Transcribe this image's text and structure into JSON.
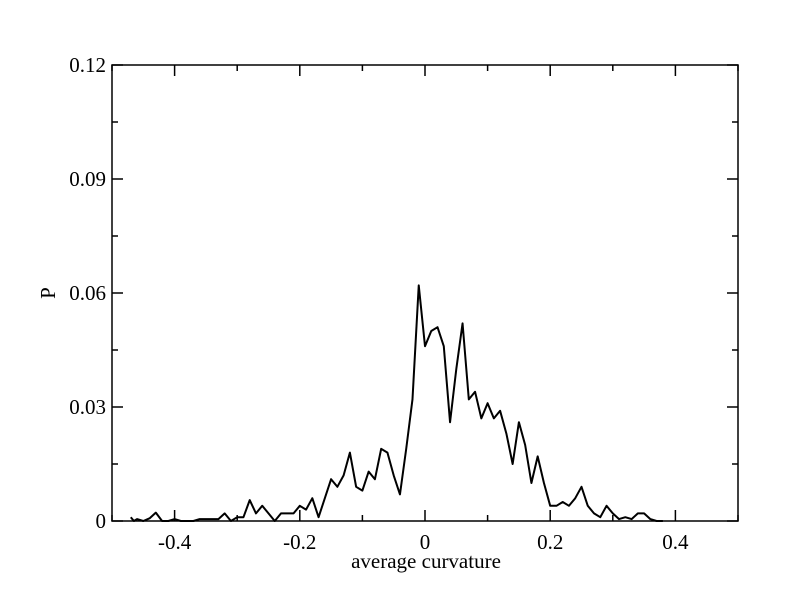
{
  "chart_data": {
    "type": "line",
    "title": "",
    "xlabel": "average curvature",
    "ylabel": "P",
    "xlim": [
      -0.5,
      0.5
    ],
    "ylim": [
      0,
      0.12
    ],
    "x_ticks": [
      -0.4,
      -0.2,
      0,
      0.2,
      0.4
    ],
    "x_tick_labels": [
      "-0.4",
      "-0.2",
      "0",
      "0.2",
      "0.4"
    ],
    "y_ticks": [
      0,
      0.03,
      0.06,
      0.09,
      0.12
    ],
    "y_tick_labels": [
      "0",
      "0.03",
      "0.06",
      "0.09",
      "0.12"
    ],
    "grid": false,
    "legend": "none",
    "series": [
      {
        "color": "#000000",
        "x": [
          -0.47,
          -0.465,
          -0.46,
          -0.45,
          -0.44,
          -0.43,
          -0.42,
          -0.41,
          -0.4,
          -0.39,
          -0.38,
          -0.37,
          -0.36,
          -0.35,
          -0.34,
          -0.33,
          -0.32,
          -0.31,
          -0.3,
          -0.29,
          -0.28,
          -0.27,
          -0.26,
          -0.25,
          -0.24,
          -0.23,
          -0.22,
          -0.21,
          -0.2,
          -0.19,
          -0.18,
          -0.17,
          -0.16,
          -0.15,
          -0.14,
          -0.13,
          -0.12,
          -0.11,
          -0.1,
          -0.09,
          -0.08,
          -0.07,
          -0.06,
          -0.05,
          -0.04,
          -0.03,
          -0.02,
          -0.01,
          0.0,
          0.01,
          0.02,
          0.03,
          0.04,
          0.05,
          0.06,
          0.07,
          0.08,
          0.09,
          0.1,
          0.11,
          0.12,
          0.13,
          0.14,
          0.15,
          0.16,
          0.17,
          0.18,
          0.19,
          0.2,
          0.21,
          0.22,
          0.23,
          0.24,
          0.25,
          0.26,
          0.27,
          0.28,
          0.29,
          0.3,
          0.31,
          0.32,
          0.33,
          0.34,
          0.35,
          0.36,
          0.37,
          0.38
        ],
        "y": [
          0.001,
          0.0,
          0.0005,
          0.0,
          0.0007,
          0.0022,
          0.0,
          0.0,
          0.0005,
          0.0,
          0.0,
          0.0,
          0.0005,
          0.0005,
          0.0005,
          0.0005,
          0.002,
          0.0,
          0.001,
          0.001,
          0.0055,
          0.002,
          0.004,
          0.002,
          0.0,
          0.002,
          0.002,
          0.002,
          0.004,
          0.003,
          0.006,
          0.001,
          0.006,
          0.011,
          0.009,
          0.012,
          0.018,
          0.009,
          0.008,
          0.013,
          0.011,
          0.019,
          0.018,
          0.012,
          0.007,
          0.019,
          0.032,
          0.062,
          0.046,
          0.05,
          0.051,
          0.046,
          0.026,
          0.04,
          0.052,
          0.032,
          0.034,
          0.027,
          0.031,
          0.027,
          0.029,
          0.023,
          0.015,
          0.026,
          0.02,
          0.01,
          0.017,
          0.01,
          0.004,
          0.004,
          0.005,
          0.004,
          0.006,
          0.009,
          0.004,
          0.002,
          0.001,
          0.004,
          0.002,
          0.0005,
          0.001,
          0.0005,
          0.002,
          0.002,
          0.0005,
          0.0,
          0.0
        ]
      }
    ]
  }
}
